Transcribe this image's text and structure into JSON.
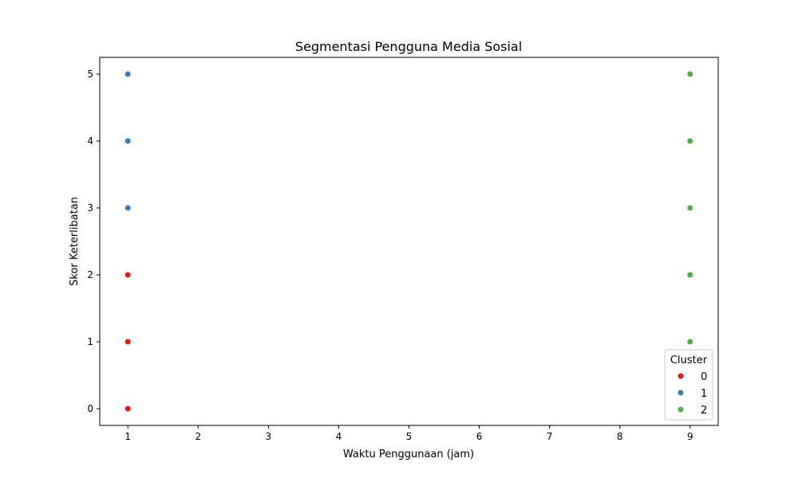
{
  "chart_data": {
    "type": "scatter",
    "title": "Segmentasi Pengguna Media Sosial",
    "xlabel": "Waktu Penggunaan (jam)",
    "ylabel": "Skor Keterlibatan",
    "xlim": [
      0.6,
      9.4
    ],
    "ylim": [
      -0.25,
      5.25
    ],
    "xticks": [
      1,
      2,
      3,
      4,
      5,
      6,
      7,
      8,
      9
    ],
    "yticks": [
      0,
      1,
      2,
      3,
      4,
      5
    ],
    "grid": false,
    "legend": {
      "title": "Cluster",
      "placement": "bottom-right"
    },
    "series": [
      {
        "name": "0",
        "color": "#e41a1c",
        "points": [
          [
            1,
            0
          ],
          [
            1,
            1
          ],
          [
            1,
            2
          ]
        ]
      },
      {
        "name": "1",
        "color": "#377eb8",
        "points": [
          [
            1,
            3
          ],
          [
            1,
            4
          ],
          [
            1,
            5
          ]
        ]
      },
      {
        "name": "2",
        "color": "#4daf4a",
        "points": [
          [
            9,
            1
          ],
          [
            9,
            2
          ],
          [
            9,
            3
          ],
          [
            9,
            4
          ],
          [
            9,
            5
          ]
        ]
      }
    ]
  }
}
